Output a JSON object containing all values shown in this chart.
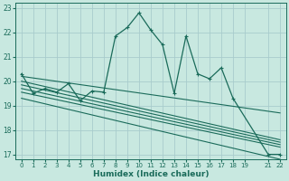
{
  "xlabel": "Humidex (Indice chaleur)",
  "bg_color": "#c8e8e0",
  "grid_color": "#a8cccc",
  "line_color": "#1a6b5a",
  "xlim": [
    -0.5,
    22.5
  ],
  "ylim": [
    16.8,
    23.2
  ],
  "yticks": [
    17,
    18,
    19,
    20,
    21,
    22,
    23
  ],
  "xticks": [
    0,
    1,
    2,
    3,
    4,
    5,
    6,
    7,
    8,
    9,
    10,
    11,
    12,
    13,
    14,
    15,
    16,
    17,
    18,
    19,
    21,
    22
  ],
  "xtick_labels": [
    "0",
    "1",
    "2",
    "3",
    "4",
    "5",
    "6",
    "7",
    "8",
    "9",
    "10",
    "11",
    "12",
    "13",
    "14",
    "15",
    "16",
    "17",
    "18",
    "19",
    "21",
    "22"
  ],
  "main_x": [
    0,
    1,
    2,
    3,
    4,
    5,
    6,
    7,
    8,
    9,
    10,
    11,
    12,
    13,
    14,
    15,
    16,
    17,
    18,
    21,
    22
  ],
  "main_y": [
    20.3,
    19.5,
    19.7,
    19.55,
    19.9,
    19.2,
    19.6,
    19.55,
    21.85,
    22.2,
    22.8,
    22.1,
    21.5,
    19.5,
    21.85,
    20.3,
    20.1,
    20.55,
    19.3,
    17.0,
    17.0
  ],
  "band_lines": [
    {
      "x": [
        0,
        22
      ],
      "y": [
        20.0,
        17.6
      ]
    },
    {
      "x": [
        0,
        22
      ],
      "y": [
        19.85,
        17.5
      ]
    },
    {
      "x": [
        0,
        22
      ],
      "y": [
        19.7,
        17.4
      ]
    },
    {
      "x": [
        0,
        22
      ],
      "y": [
        19.55,
        17.3
      ]
    },
    {
      "x": [
        0,
        22
      ],
      "y": [
        20.2,
        18.7
      ]
    },
    {
      "x": [
        0,
        22
      ],
      "y": [
        19.3,
        16.8
      ]
    }
  ]
}
